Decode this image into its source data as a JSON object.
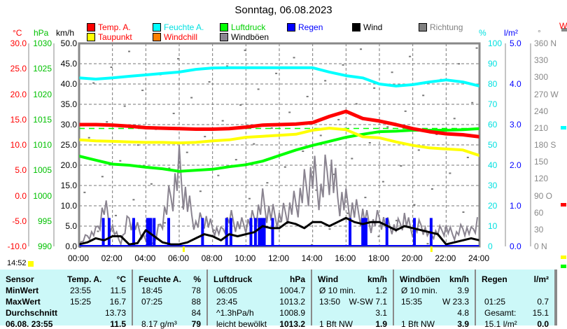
{
  "title": "Sonntag, 06.08.2023",
  "legend": [
    {
      "label": "Temp. A.",
      "color": "#ff0000",
      "text_color": "#ff0000"
    },
    {
      "label": "Feuchte A.",
      "color": "#00ffff",
      "text_color": "#00e0e0"
    },
    {
      "label": "Luftdruck",
      "color": "#00ff00",
      "text_color": "#00d000"
    },
    {
      "label": "Regen",
      "color": "#0000ff",
      "text_color": "#0000ff"
    },
    {
      "label": "Wind",
      "color": "#000000",
      "text_color": "#000000"
    },
    {
      "label": "Richtung",
      "color": "#808080",
      "text_color": "#808080"
    },
    {
      "label": "Taupunkt",
      "color": "#ffff00",
      "text_color": "#ff0000"
    },
    {
      "label": "Windchill",
      "color": "#ff8000",
      "text_color": "#ff0000"
    },
    {
      "label": "Windböen",
      "color": "#8a8490",
      "text_color": "#000000"
    }
  ],
  "axes": {
    "temp": {
      "unit": "°C",
      "ticks": [
        "30.0",
        "25.0",
        "20.0",
        "15.0",
        "10.0",
        "5.0",
        "0.0",
        "-5.0",
        "-10.0"
      ]
    },
    "pressure": {
      "unit": "hPa",
      "ticks": [
        "1030",
        "1025",
        "1020",
        "1015",
        "1010",
        "1005",
        "1000",
        "995",
        "990"
      ]
    },
    "wind": {
      "unit": "km/h",
      "ticks": [
        "50.0",
        "45.0",
        "40.0",
        "35.0",
        "30.0",
        "25.0",
        "20.0",
        "15.0",
        "10.0",
        "5.0",
        "0.0"
      ]
    },
    "humidity": {
      "unit": "%",
      "ticks": [
        "100",
        "90",
        "80",
        "70",
        "60",
        "50",
        "40",
        "30",
        "20",
        "10",
        "0"
      ]
    },
    "rain": {
      "unit": "l/m²",
      "ticks": [
        "5.0",
        "4.0",
        "3.0",
        "2.0",
        "1.0",
        "0.0"
      ]
    },
    "direction": {
      "unit": "°",
      "ticks": [
        "360 N",
        "330",
        "300",
        "270 W",
        "240",
        "210",
        "180 S",
        "150",
        "120",
        "90  O",
        "60",
        "30",
        "0    N"
      ]
    },
    "time": [
      "00:00",
      "02:00",
      "04:00",
      "06:00",
      "08:00",
      "10:00",
      "12:00",
      "14:00",
      "16:00",
      "18:00",
      "20:00",
      "22:00",
      "24:00"
    ]
  },
  "current_time": "14:52",
  "partial_chart_label": "W",
  "chart_data": {
    "type": "line",
    "title": "Sonntag, 06.08.2023",
    "x_hours_hourly": [
      0,
      1,
      2,
      3,
      4,
      5,
      6,
      7,
      8,
      9,
      10,
      11,
      12,
      13,
      14,
      15,
      16,
      17,
      18,
      19,
      20,
      21,
      22,
      23,
      24
    ],
    "series": [
      {
        "name": "Temp. A.",
        "unit": "°C",
        "values": [
          14.0,
          14.0,
          13.9,
          13.7,
          13.4,
          13.3,
          13.2,
          13.1,
          13.1,
          13.2,
          13.5,
          13.9,
          14.0,
          14.1,
          14.4,
          15.6,
          16.6,
          15.2,
          14.7,
          14.0,
          13.2,
          12.6,
          12.2,
          12.0,
          11.6
        ]
      },
      {
        "name": "Taupunkt",
        "unit": "°C",
        "values": [
          11.0,
          10.8,
          10.7,
          10.6,
          10.5,
          10.5,
          10.4,
          10.5,
          10.8,
          11.0,
          11.5,
          11.7,
          11.9,
          12.1,
          12.9,
          13.3,
          13.0,
          11.6,
          11.4,
          10.6,
          9.9,
          9.4,
          9.2,
          9.0,
          7.9
        ]
      },
      {
        "name": "Feuchte A.",
        "unit": "%",
        "values": [
          83,
          82.4,
          83,
          83.8,
          84.5,
          85.2,
          85.9,
          87.2,
          87.9,
          88,
          88,
          88,
          88,
          88,
          88,
          85.9,
          84.1,
          83,
          80,
          79,
          79.7,
          81,
          82,
          81,
          79
        ]
      },
      {
        "name": "Luftdruck",
        "unit": "hPa",
        "values": [
          1007.8,
          1007.0,
          1006.2,
          1006.0,
          1005.6,
          1005.3,
          1004.8,
          1005.0,
          1005.2,
          1005.7,
          1006.1,
          1006.8,
          1007.9,
          1009.0,
          1009.9,
          1010.7,
          1011.5,
          1012.1,
          1012.6,
          1012.7,
          1012.9,
          1012.9,
          1012.9,
          1013.0,
          1013.2
        ]
      },
      {
        "name": "Wind",
        "unit": "km/h",
        "step_hours": 0.5,
        "values": [
          0.5,
          1,
          2,
          1.5,
          2.5,
          2.5,
          0.5,
          0.8,
          4,
          2.5,
          1,
          0.5,
          0.5,
          1,
          2,
          3,
          2.5,
          1.5,
          3,
          2.5,
          3,
          3.5,
          5,
          4.5,
          4.5,
          6,
          5.5,
          4.5,
          6,
          6,
          5,
          6,
          7,
          6,
          5.5,
          6,
          6,
          5,
          4,
          5,
          4.5,
          4,
          3.5,
          3,
          0.5,
          1,
          1.5,
          2,
          1.5
        ]
      },
      {
        "name": "Windböen",
        "unit": "km/h",
        "step_hours": 0.5,
        "values": [
          0.5,
          3,
          4,
          11,
          5,
          1,
          8,
          5,
          2,
          1,
          8,
          14,
          21,
          12,
          6,
          8,
          5,
          4,
          8,
          6,
          6,
          8,
          12,
          9,
          8,
          10,
          12,
          16,
          20,
          15,
          23,
          14,
          12,
          10,
          9,
          6,
          8,
          6,
          5,
          8,
          4,
          6,
          3,
          4,
          5,
          3,
          5,
          4,
          8
        ]
      },
      {
        "name": "Regen",
        "unit": "l/m²",
        "bar_hours": [
          1.45,
          1.8,
          3.27,
          4.1,
          4.2,
          4.3,
          4.5,
          5.37,
          7.4,
          8.84,
          9.1,
          10.3,
          10.57,
          10.8,
          10.9,
          11.0,
          11.1,
          11.6,
          16.24,
          17.0,
          17.1,
          17.2,
          18.45,
          20.1,
          21.1
        ],
        "bar_value": 0.7
      }
    ],
    "reference_line": {
      "name": "Luftdruck 1013.25",
      "unit": "hPa",
      "value": 1013.25
    },
    "sun_marks_hours": [
      6.25,
      21.1
    ],
    "xlim": [
      0,
      24
    ],
    "temp_lim": [
      -10,
      30
    ],
    "pressure_lim": [
      990,
      1030
    ],
    "wind_lim": [
      0,
      50
    ],
    "humidity_lim": [
      0,
      100
    ],
    "rain_lim": [
      0,
      5
    ],
    "direction_lim": [
      0,
      360
    ]
  },
  "table": {
    "headers": [
      [
        "Sensor",
        ""
      ],
      [
        "Temp. A.",
        "°C"
      ],
      [
        "Feuchte A.",
        "%"
      ],
      [
        "Luftdruck",
        "hPa"
      ],
      [
        "Wind",
        "km/h"
      ],
      [
        "Windböen",
        "km/h"
      ],
      [
        "Regen",
        "l/m²"
      ]
    ],
    "rows": [
      {
        "label": "MinWert",
        "cells": [
          [
            "23:55",
            "11.5"
          ],
          [
            "18:45",
            "78"
          ],
          [
            "06:05",
            "1004.7"
          ],
          [
            "Ø 10 min.",
            "1.2"
          ],
          [
            "Ø 10 min.",
            "3.9"
          ],
          [
            "",
            ""
          ]
        ]
      },
      {
        "label": "MaxWert",
        "cells": [
          [
            "15:25",
            "16.7"
          ],
          [
            "07:25",
            "88"
          ],
          [
            "23:45",
            "1013.2"
          ],
          [
            "13:50",
            "W-SW 7.1"
          ],
          [
            "15:35",
            "W 23.3"
          ],
          [
            "01:25",
            "0.7"
          ]
        ]
      },
      {
        "label": "Durchschnitt",
        "cells": [
          [
            "",
            "13.73"
          ],
          [
            "",
            "84"
          ],
          [
            "^1.3hPa/h",
            "1008.9"
          ],
          [
            "",
            "3.1"
          ],
          [
            "",
            "4.8"
          ],
          [
            "Gesamt:",
            "15.1"
          ]
        ]
      },
      {
        "label": "06.08. 23:55",
        "cells": [
          [
            "",
            "11.5"
          ],
          [
            "8.17 g/m³",
            "79"
          ],
          [
            "leicht bewölkt",
            "1013.2"
          ],
          [
            "1 Bft NW",
            "1.9"
          ],
          [
            "1 Bft NW",
            "3.9"
          ],
          [
            "15.1 l/m²",
            "0.0"
          ]
        ]
      }
    ]
  }
}
